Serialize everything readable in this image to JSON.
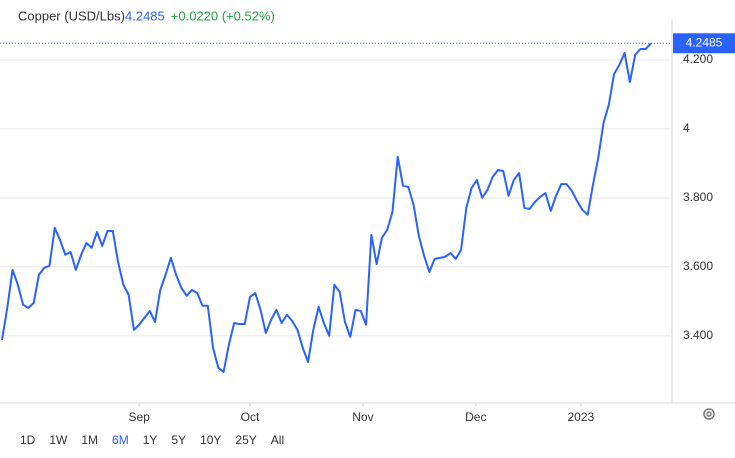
{
  "chart_data": {
    "type": "line",
    "title": "Copper (USD/Lbs)",
    "change": "+0.0220 (+0.52%)",
    "series": [
      {
        "name": "Copper",
        "color": "#2962ff",
        "values": [
          3.388,
          3.481,
          3.591,
          3.548,
          3.49,
          3.481,
          3.495,
          3.577,
          3.597,
          3.603,
          3.713,
          3.678,
          3.635,
          3.643,
          3.591,
          3.635,
          3.669,
          3.655,
          3.701,
          3.661,
          3.704,
          3.704,
          3.614,
          3.548,
          3.519,
          3.417,
          3.432,
          3.452,
          3.472,
          3.44,
          3.533,
          3.577,
          3.626,
          3.577,
          3.539,
          3.516,
          3.533,
          3.524,
          3.487,
          3.487,
          3.365,
          3.307,
          3.295,
          3.374,
          3.437,
          3.434,
          3.434,
          3.513,
          3.524,
          3.475,
          3.408,
          3.446,
          3.475,
          3.437,
          3.461,
          3.443,
          3.417,
          3.365,
          3.324,
          3.417,
          3.484,
          3.437,
          3.4,
          3.548,
          3.527,
          3.44,
          3.397,
          3.475,
          3.472,
          3.432,
          3.693,
          3.608,
          3.684,
          3.707,
          3.759,
          3.919,
          3.835,
          3.832,
          3.78,
          3.69,
          3.632,
          3.585,
          3.623,
          3.626,
          3.629,
          3.64,
          3.623,
          3.649,
          3.771,
          3.829,
          3.852,
          3.8,
          3.823,
          3.861,
          3.881,
          3.878,
          3.806,
          3.852,
          3.872,
          3.771,
          3.768,
          3.788,
          3.803,
          3.814,
          3.762,
          3.806,
          3.84,
          3.84,
          3.82,
          3.791,
          3.765,
          3.751,
          3.838,
          3.916,
          4.017,
          4.07,
          4.159,
          4.186,
          4.22,
          4.136,
          4.215,
          4.232,
          4.232,
          4.2485
        ]
      }
    ],
    "xlim": [
      0,
      123
    ],
    "xticks": [
      {
        "value": 26,
        "label": "Sep"
      },
      {
        "value": 47,
        "label": "Oct"
      },
      {
        "value": 68.4,
        "label": "Nov"
      },
      {
        "value": 89.8,
        "label": "Dec"
      },
      {
        "value": 109.7,
        "label": "2023"
      }
    ],
    "ylim": [
      3.205,
      4.316
    ],
    "yticks": [
      {
        "value": 4.2,
        "label": "4.200"
      },
      4,
      {
        "value": 3.8,
        "label": "3.800"
      },
      {
        "value": 3.6,
        "label": "3.600"
      },
      {
        "value": 3.4,
        "label": "3.400"
      }
    ],
    "grid": true,
    "ranges": [
      "1D",
      "1W",
      "1M",
      "6M",
      "1Y",
      "5Y",
      "10Y",
      "25Y",
      "All"
    ],
    "selected_range": "6M"
  }
}
